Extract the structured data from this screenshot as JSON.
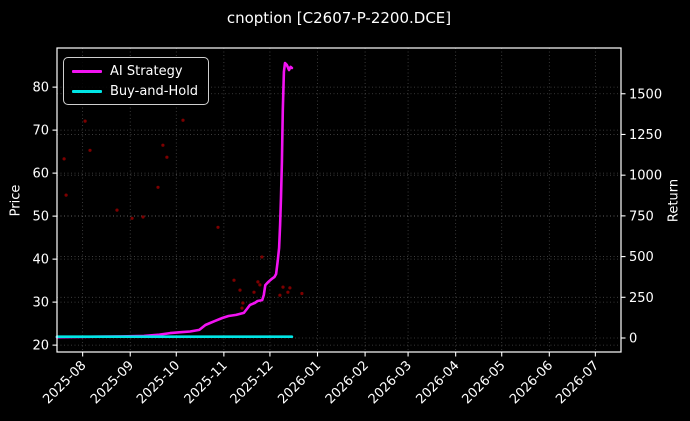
{
  "chart_data": {
    "type": "line",
    "title": "cnoption [C2607-P-2200.DCE]",
    "background": "#000000",
    "text_color": "#ffffff",
    "grid": true,
    "legend_position": "upper left",
    "x_axis": {
      "label": "",
      "units": "days since 2025-08-01",
      "tick_labels": [
        "2025-08",
        "2025-09",
        "2025-10",
        "2025-11",
        "2025-12",
        "2026-01",
        "2026-02",
        "2026-03",
        "2026-04",
        "2026-05",
        "2026-06",
        "2026-07"
      ],
      "tick_days": [
        0,
        31,
        61,
        92,
        122,
        153,
        184,
        212,
        243,
        273,
        304,
        334
      ],
      "range_days": [
        -16.7,
        350.7
      ]
    },
    "y_left": {
      "label": "Price",
      "ticks": [
        20,
        30,
        40,
        50,
        60,
        70,
        80
      ],
      "range": [
        18.4,
        89.1
      ]
    },
    "y_right": {
      "label": "Return",
      "ticks": [
        0,
        250,
        500,
        750,
        1000,
        1250,
        1500
      ],
      "range": [
        -86,
        1781
      ]
    },
    "series": [
      {
        "name": "AI Strategy",
        "color": "#f213f2",
        "axis": "right",
        "kind": "line",
        "line_width": 2.6,
        "points": [
          [
            -16.7,
            5
          ],
          [
            -5,
            6
          ],
          [
            10,
            8
          ],
          [
            25,
            10
          ],
          [
            40,
            13
          ],
          [
            50,
            20
          ],
          [
            57,
            30
          ],
          [
            65,
            36
          ],
          [
            70,
            40
          ],
          [
            76,
            50
          ],
          [
            80,
            80
          ],
          [
            83,
            92
          ],
          [
            86,
            104
          ],
          [
            91,
            123
          ],
          [
            95,
            135
          ],
          [
            100,
            142
          ],
          [
            105,
            154
          ],
          [
            107,
            178
          ],
          [
            109,
            203
          ],
          [
            112,
            215
          ],
          [
            114,
            227
          ],
          [
            117,
            233
          ],
          [
            118,
            264
          ],
          [
            119,
            325
          ],
          [
            121,
            345
          ],
          [
            123,
            362
          ],
          [
            125,
            375
          ],
          [
            126,
            393
          ],
          [
            127,
            467
          ],
          [
            128,
            553
          ],
          [
            128.6,
            694
          ],
          [
            129.2,
            866
          ],
          [
            129.8,
            1081
          ],
          [
            130.4,
            1400
          ],
          [
            131.1,
            1634
          ],
          [
            131.8,
            1689
          ],
          [
            133,
            1677
          ],
          [
            134.4,
            1646
          ],
          [
            135.5,
            1665
          ],
          [
            136.3,
            1658
          ]
        ]
      },
      {
        "name": "Buy-and-Hold",
        "color": "#00e5e5",
        "axis": "right",
        "kind": "line",
        "line_width": 2.6,
        "points": [
          [
            -16.7,
            8
          ],
          [
            136.3,
            8
          ]
        ]
      },
      {
        "name": "price-scatter",
        "color": "#8b0000",
        "axis": "left",
        "kind": "scatter",
        "marker_radius": 1.6,
        "points": [
          [
            -12.1,
            63.3
          ],
          [
            -10.8,
            54.9
          ],
          [
            1.6,
            72.1
          ],
          [
            4.8,
            65.3
          ],
          [
            22.4,
            51.4
          ],
          [
            32.2,
            49.5
          ],
          [
            39.3,
            49.8
          ],
          [
            49.1,
            56.7
          ],
          [
            52.3,
            66.5
          ],
          [
            54.9,
            63.7
          ],
          [
            65.4,
            72.3
          ],
          [
            88.2,
            47.4
          ],
          [
            98.6,
            35.1
          ],
          [
            102.5,
            32.8
          ],
          [
            103.8,
            28.6
          ],
          [
            104.4,
            29.8
          ],
          [
            111.6,
            32.3
          ],
          [
            114.2,
            34.7
          ],
          [
            115.5,
            34.0
          ],
          [
            116.8,
            40.5
          ],
          [
            128.5,
            31.6
          ],
          [
            130.5,
            33.5
          ],
          [
            133.7,
            32.3
          ],
          [
            135.0,
            33.3
          ],
          [
            142.8,
            32.0
          ]
        ]
      }
    ]
  }
}
